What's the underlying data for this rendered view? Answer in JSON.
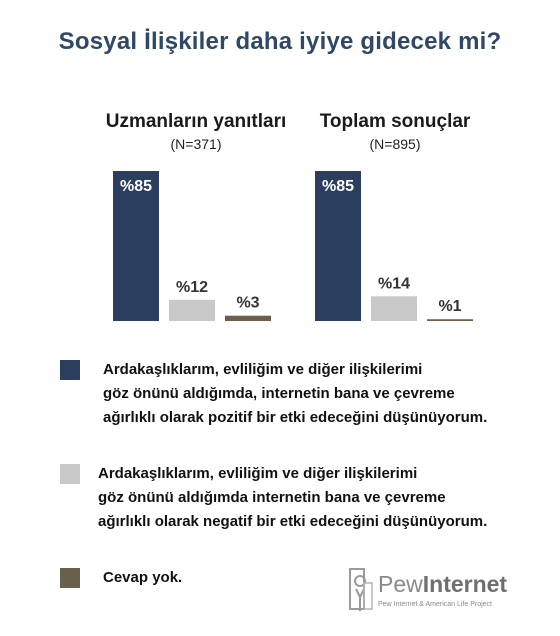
{
  "title": "Sosyal İlişkiler daha iyiye gidecek mi?",
  "chart_data": {
    "type": "bar",
    "ylim": [
      0,
      85
    ],
    "series_colors": [
      "#2c3e5e",
      "#c8c8c8",
      "#6b5f4d"
    ],
    "panels": [
      {
        "title": "Uzmanların yanıtları",
        "subtitle": "(N=371)",
        "values": [
          85,
          12,
          3
        ],
        "labels": [
          "%85",
          "%12",
          "%3"
        ]
      },
      {
        "title": "Toplam sonuçlar",
        "subtitle": "(N=895)",
        "values": [
          85,
          14,
          1
        ],
        "labels": [
          "%85",
          "%14",
          "%1"
        ]
      }
    ],
    "legend": [
      {
        "color": "#2c3e5e",
        "lines": [
          "Ardakaşlıklarım, evliliğim ve diğer ilişkilerimi",
          "göz önünü aldığımda, internetin bana ve çevreme",
          "ağırlıklı olarak pozitif bir etki edeceğini düşünüyorum."
        ]
      },
      {
        "color": "#c8c8c8",
        "lines": [
          "Ardakaşlıklarım, evliliğim ve diğer ilişkilerimi",
          "göz önünü aldığımda internetin bana ve çevreme",
          "ağırlıklı olarak negatif bir etki edeceğini düşünüyorum."
        ]
      },
      {
        "color": "#6b5f4d",
        "lines": [
          "Cevap yok."
        ]
      }
    ]
  },
  "logo": {
    "brand_light": "Pew",
    "brand_bold": "Internet",
    "tagline": "Pew Internet & American Life Project",
    "icon": "pew-logo-icon"
  }
}
